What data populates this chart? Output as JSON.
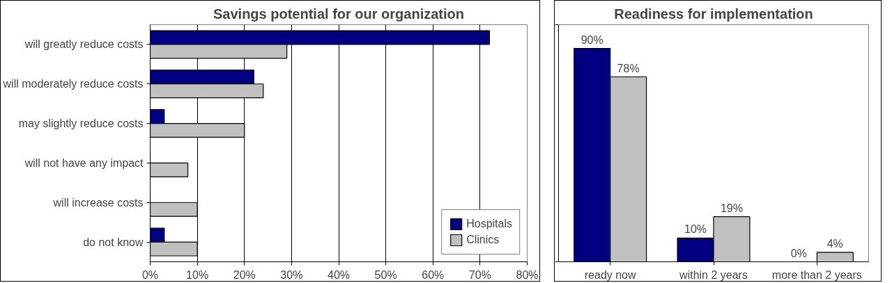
{
  "chart_data": [
    {
      "type": "bar",
      "orientation": "horizontal",
      "title": "Savings potential for our organization",
      "categories": [
        "will greatly reduce costs",
        "will moderately reduce costs",
        "may slightly reduce costs",
        "will not have any impact",
        "will increase costs",
        "do not know"
      ],
      "series": [
        {
          "name": "Hospitals",
          "color": "#000080",
          "values": [
            72,
            22,
            3,
            0,
            0,
            3
          ]
        },
        {
          "name": "Clinics",
          "color": "#c0c0c0",
          "values": [
            29,
            24,
            20,
            8,
            10,
            10
          ]
        }
      ],
      "xlim": [
        0,
        80
      ],
      "xticks": [
        {
          "value": 0,
          "label": "0%"
        },
        {
          "value": 10,
          "label": "10%"
        },
        {
          "value": 20,
          "label": "20%"
        },
        {
          "value": 30,
          "label": "30%"
        },
        {
          "value": 40,
          "label": "40%"
        },
        {
          "value": 50,
          "label": "50%"
        },
        {
          "value": 60,
          "label": "60%"
        },
        {
          "value": 70,
          "label": "70%"
        },
        {
          "value": 80,
          "label": "80%"
        }
      ],
      "grid": "x",
      "legend": "bottom right"
    },
    {
      "type": "bar",
      "title": "Readiness for implementation",
      "categories": [
        "ready now",
        "within 2 years",
        "more than 2 years"
      ],
      "series": [
        {
          "color": "#000080",
          "values": [
            90,
            10,
            0
          ],
          "value_labels": [
            "90%",
            "10%",
            "0%"
          ]
        },
        {
          "color": "#c0c0c0",
          "values": [
            78,
            19,
            4
          ],
          "value_labels": [
            "78%",
            "19%",
            "4%"
          ]
        }
      ],
      "ylim": [
        0,
        100
      ],
      "yticks": [
        {
          "value": 0,
          "label": null
        },
        {
          "value": 100,
          "label": null
        }
      ],
      "tick_labels": "x",
      "grid": false
    }
  ]
}
